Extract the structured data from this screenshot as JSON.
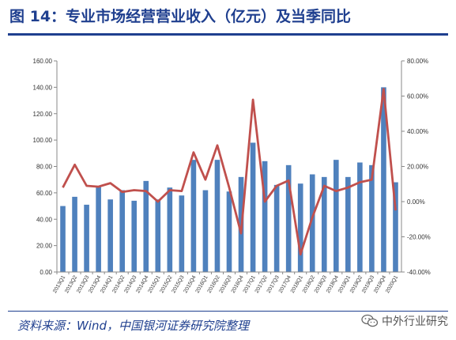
{
  "header": {
    "title": "图 14：专业市场经营营业收入（亿元）及当季同比"
  },
  "footer": {
    "source": "资料来源：Wind，中国银河证券研究院整理",
    "brand": "中外行业研究"
  },
  "colors": {
    "bar": "#4f81bd",
    "line": "#c0504d",
    "title": "#1f3f8f"
  },
  "chart_data": {
    "type": "bar",
    "categories": [
      "2013Q1",
      "2013Q2",
      "2013Q3",
      "2013Q4",
      "2014Q1",
      "2014Q2",
      "2014Q3",
      "2014Q4",
      "2015Q1",
      "2015Q2",
      "2015Q3",
      "2015Q4",
      "2016Q1",
      "2016Q2",
      "2016Q3",
      "2016Q4",
      "2017Q1",
      "2017Q2",
      "2017Q3",
      "2017Q4",
      "2018Q1",
      "2018Q2",
      "2018Q3",
      "2018Q4",
      "2019Q1",
      "2019Q2",
      "2019Q3",
      "2019Q4",
      "2020Q1"
    ],
    "series": [
      {
        "type": "bar",
        "axis": "left",
        "values": [
          50,
          57,
          51,
          65,
          55,
          62,
          54,
          69,
          55,
          64,
          58,
          85,
          62,
          85,
          61,
          72,
          98,
          84,
          66,
          81,
          67,
          74,
          72,
          85,
          72,
          83,
          81,
          140,
          68
        ]
      },
      {
        "type": "line",
        "axis": "right",
        "values": [
          8,
          21,
          9,
          8.5,
          10.5,
          5.5,
          6.5,
          6,
          0,
          6.5,
          6,
          28,
          12.5,
          32,
          8,
          -18,
          58,
          0,
          9,
          12,
          -30,
          -9,
          9,
          6,
          8,
          11,
          12.5,
          64,
          -5
        ]
      }
    ],
    "yleft": {
      "lim": [
        0,
        160
      ],
      "ticks": [
        "0.00",
        "20.00",
        "40.00",
        "60.00",
        "80.00",
        "100.00",
        "120.00",
        "140.00",
        "160.00"
      ]
    },
    "yright": {
      "lim": [
        -40,
        80
      ],
      "ticks": [
        "-40.00%",
        "-20.00%",
        "0.00%",
        "20.00%",
        "40.00%",
        "60.00%",
        "80.00%"
      ]
    }
  }
}
